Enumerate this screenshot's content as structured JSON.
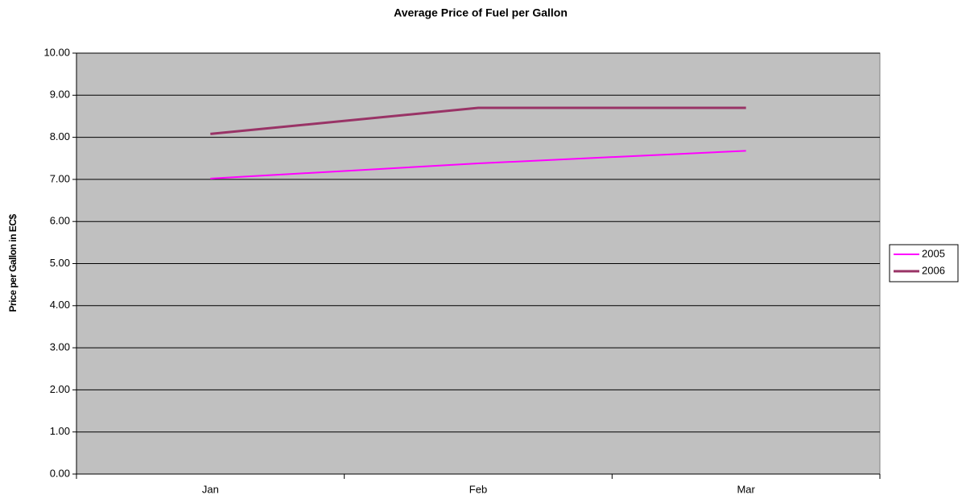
{
  "chart_data": {
    "type": "line",
    "title": "Average Price of Fuel per Gallon",
    "y_label": "Price per Gallon in EC$",
    "categories": [
      "Jan",
      "Feb",
      "Mar"
    ],
    "series": [
      {
        "name": "2005",
        "color": "#ff00ff",
        "values": [
          7.02,
          7.38,
          7.68
        ]
      },
      {
        "name": "2006",
        "color": "#993366",
        "values": [
          8.08,
          8.7,
          8.7
        ]
      }
    ],
    "ylim": [
      0,
      10
    ],
    "yticks": [
      {
        "value": 0,
        "label": "0.00"
      },
      {
        "value": 1,
        "label": "1.00"
      },
      {
        "value": 2,
        "label": "2.00"
      },
      {
        "value": 3,
        "label": "3.00"
      },
      {
        "value": 4,
        "label": "4.00"
      },
      {
        "value": 5,
        "label": "5.00"
      },
      {
        "value": 6,
        "label": "6.00"
      },
      {
        "value": 7,
        "label": "7.00"
      },
      {
        "value": 8,
        "label": "8.00"
      },
      {
        "value": 9,
        "label": "9.00"
      },
      {
        "value": 10,
        "label": "10.00"
      }
    ],
    "grid": true,
    "legend": "right",
    "plot_background": "#c0c0c0"
  }
}
